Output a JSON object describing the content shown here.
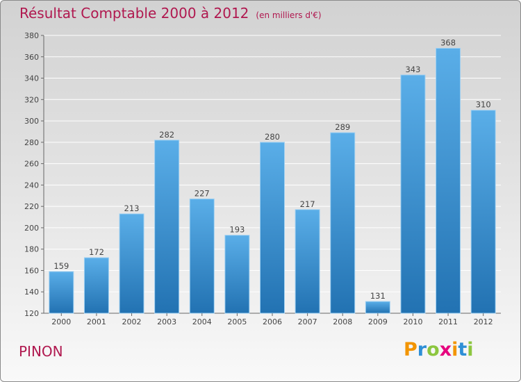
{
  "title": "Résultat Comptable 2000 à 2012",
  "unit_note": "(en milliers d'€)",
  "commune": "PINON",
  "brand": {
    "letters": [
      "P",
      "r",
      "o",
      "x",
      "i",
      "t",
      "i"
    ],
    "colors": [
      "#f29400",
      "#2e8fd6",
      "#8cc63f",
      "#e6007e",
      "#f29400",
      "#2e8fd6",
      "#8cc63f"
    ]
  },
  "colors": {
    "title": "#b0184f",
    "bar_top": "#5aaee8",
    "bar_bottom": "#2272b2",
    "grid": "#ffffff"
  },
  "chart_data": {
    "type": "bar",
    "title": "Résultat Comptable 2000 à 2012",
    "subtitle": "(en milliers d'€)",
    "xlabel": "",
    "ylabel": "",
    "categories": [
      "2000",
      "2001",
      "2002",
      "2003",
      "2004",
      "2005",
      "2006",
      "2007",
      "2008",
      "2009",
      "2010",
      "2011",
      "2012"
    ],
    "values": [
      159,
      172,
      213,
      282,
      227,
      193,
      280,
      217,
      289,
      131,
      343,
      368,
      310
    ],
    "ylim": [
      120,
      380
    ],
    "yticks": [
      120,
      140,
      160,
      180,
      200,
      220,
      240,
      260,
      280,
      300,
      320,
      340,
      360,
      380
    ],
    "grid": true,
    "legend": "none"
  }
}
